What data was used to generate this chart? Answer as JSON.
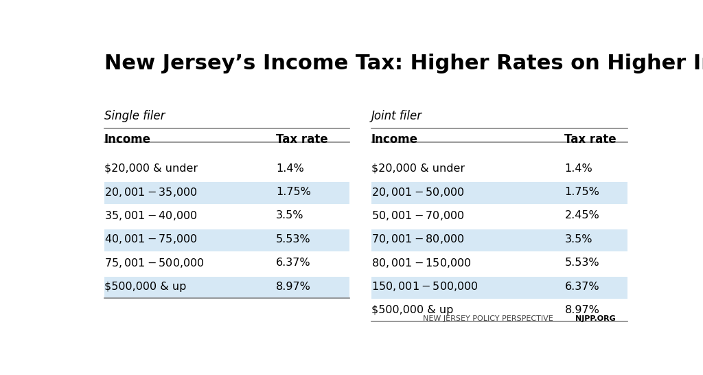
{
  "title": "New Jersey’s Income Tax: Higher Rates on Higher Income",
  "title_fontsize": 22,
  "background_color": "#ffffff",
  "single_filer_label": "Single filer",
  "joint_filer_label": "Joint filer",
  "col_headers": [
    "Income",
    "Tax rate"
  ],
  "single_filer": [
    {
      "income": "$20,000 & under",
      "rate": "1.4%",
      "highlight": false
    },
    {
      "income": "$20,001 - $35,000",
      "rate": "1.75%",
      "highlight": true
    },
    {
      "income": "$35,001 - $40,000",
      "rate": "3.5%",
      "highlight": false
    },
    {
      "income": "$40,001 - $75,000",
      "rate": "5.53%",
      "highlight": true
    },
    {
      "income": "$75,001 - $500,000",
      "rate": "6.37%",
      "highlight": false
    },
    {
      "income": "$500,000 & up",
      "rate": "8.97%",
      "highlight": true
    }
  ],
  "joint_filer": [
    {
      "income": "$20,000 & under",
      "rate": "1.4%",
      "highlight": false
    },
    {
      "income": "$20,001 - $50,000",
      "rate": "1.75%",
      "highlight": true
    },
    {
      "income": "$50,001 - $70,000",
      "rate": "2.45%",
      "highlight": false
    },
    {
      "income": "$70,001 - $80,000",
      "rate": "3.5%",
      "highlight": true
    },
    {
      "income": "$80,001 - $150,000",
      "rate": "5.53%",
      "highlight": false
    },
    {
      "income": "$150,001 - $500,000",
      "rate": "6.37%",
      "highlight": true
    },
    {
      "income": "$500,000 & up",
      "rate": "8.97%",
      "highlight": false
    }
  ],
  "highlight_color": "#d6e8f5",
  "line_color": "#888888",
  "footer_left": "NEW JERSEY POLICY PERSPECTIVE",
  "footer_right": "NJPP.ORG"
}
